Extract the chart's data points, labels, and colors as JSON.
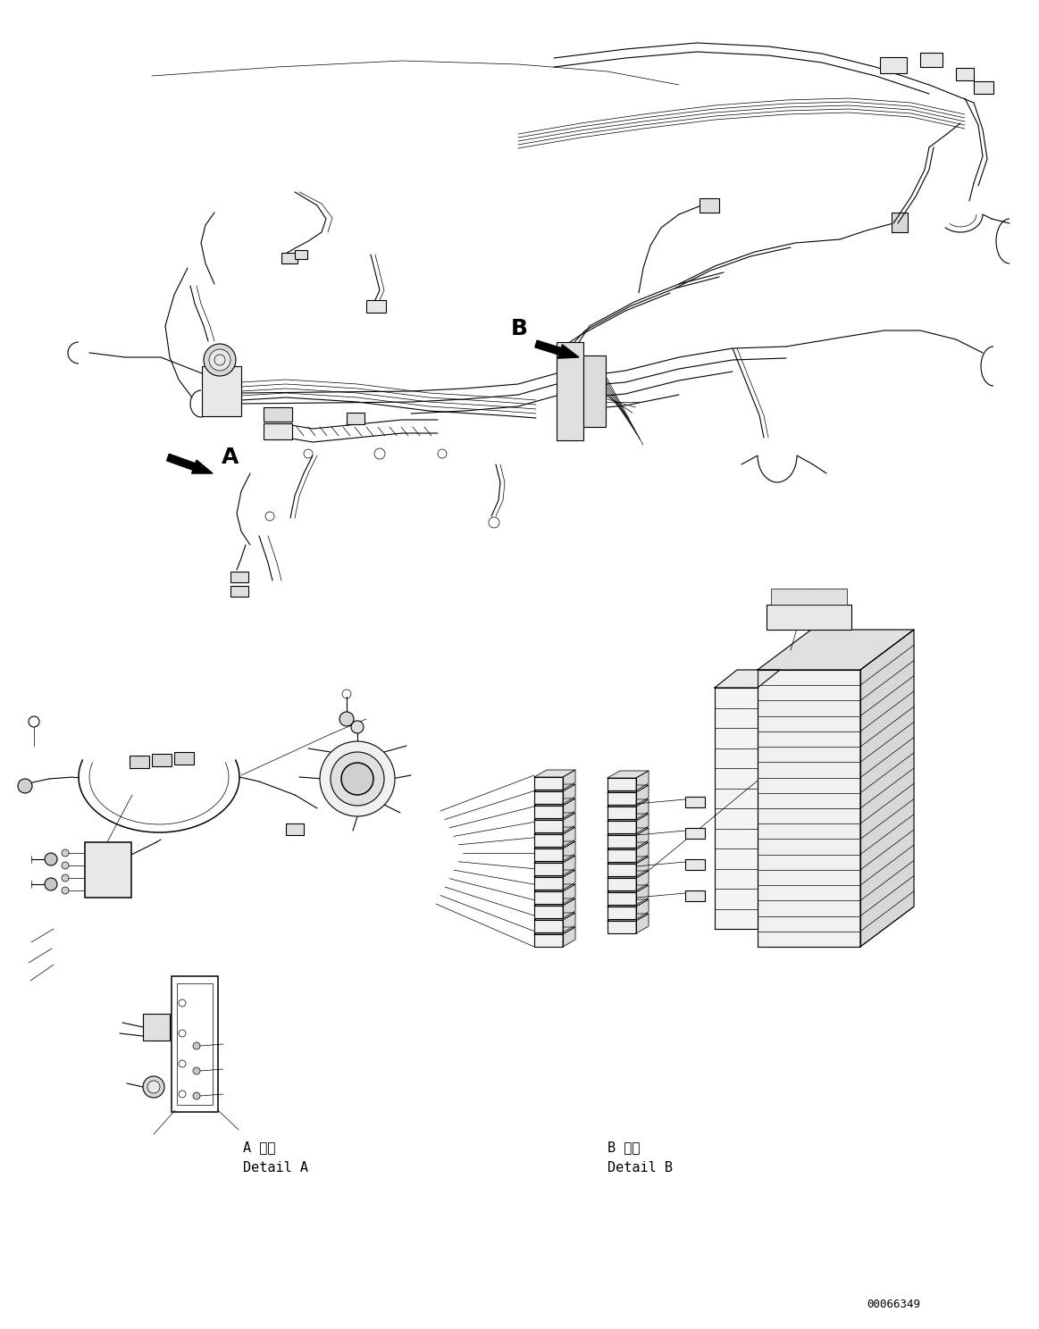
{
  "figure_width": 11.63,
  "figure_height": 14.88,
  "dpi": 100,
  "bg_color": "#ffffff",
  "line_color": "#000000",
  "lw": 0.8,
  "tlw": 0.5,
  "label_A": "A",
  "label_B": "B",
  "detail_A_ja": "A 詳細",
  "detail_A_en": "Detail A",
  "detail_B_ja": "B 詳細",
  "detail_B_en": "Detail B",
  "part_number": "00066349"
}
